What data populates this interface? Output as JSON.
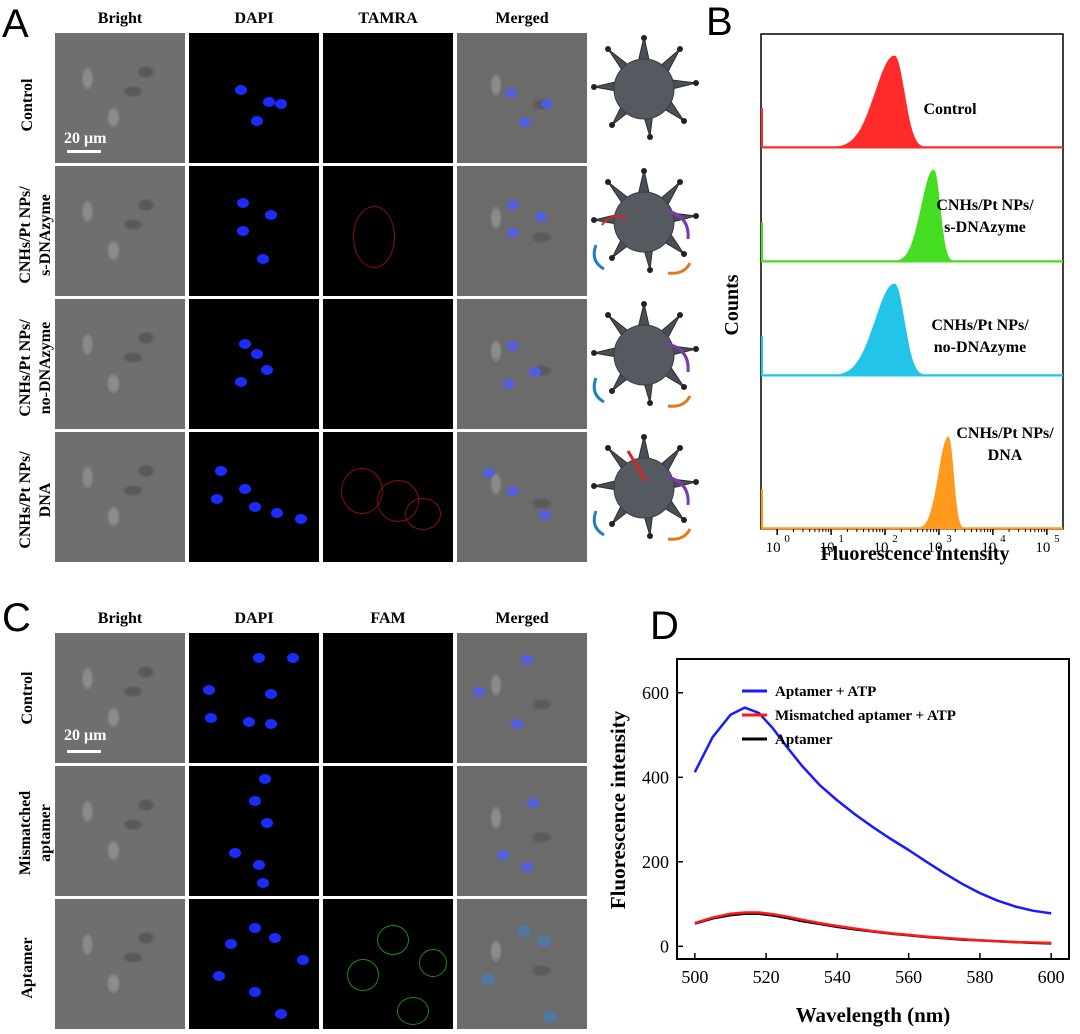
{
  "panelA": {
    "letter": "A",
    "columns": [
      "Bright",
      "DAPI",
      "TAMRA",
      "Merged"
    ],
    "rows": [
      "Control",
      "CNHs/Pt NPs/\ns-DNAzyme",
      "CNHs/Pt NPs/\nno-DNAzyme",
      "CNHs/Pt NPs/\nDNA"
    ],
    "scalebar": "20 μm"
  },
  "panelB": {
    "letter": "B",
    "ylabel": "Counts",
    "xlabel": "Fluorescence intensity",
    "ticks": [
      {
        "base": "10",
        "exp": "0"
      },
      {
        "base": "10",
        "exp": "1"
      },
      {
        "base": "10",
        "exp": "2"
      },
      {
        "base": "10",
        "exp": "3"
      },
      {
        "base": "10",
        "exp": "4"
      },
      {
        "base": "10",
        "exp": "5"
      }
    ],
    "histograms": [
      {
        "label": "Control",
        "color": "#ff2a2a",
        "peak": 150
      },
      {
        "label": "CNHs/Pt NPs/\ns-DNAzyme",
        "color": "#44dd22",
        "peak": 800
      },
      {
        "label": "CNHs/Pt NPs/\nno-DNAzyme",
        "color": "#22c4e8",
        "peak": 150
      },
      {
        "label": "CNHs/Pt NPs/\nDNA",
        "color": "#ff9a1f",
        "peak": 1500
      }
    ]
  },
  "panelC": {
    "letter": "C",
    "columns": [
      "Bright",
      "DAPI",
      "FAM",
      "Merged"
    ],
    "rows": [
      "Control",
      "Mismatched\naptamer",
      "Aptamer"
    ],
    "scalebar": "20 μm"
  },
  "chart_data": {
    "type": "line",
    "panel_letter": "D",
    "xlabel": "Wavelength (nm)",
    "ylabel": "Fluorescence intensity",
    "xlim": [
      495,
      605
    ],
    "ylim": [
      -30,
      680
    ],
    "xticks": [
      500,
      520,
      540,
      560,
      580,
      600
    ],
    "yticks": [
      0,
      200,
      400,
      600
    ],
    "legend_position": "top-right",
    "x": [
      500,
      505,
      510,
      514,
      518,
      522,
      526,
      530,
      535,
      540,
      545,
      550,
      555,
      560,
      565,
      570,
      575,
      580,
      585,
      590,
      595,
      600
    ],
    "series": [
      {
        "name": "Aptamer + ATP",
        "color": "#1a1aff",
        "values": [
          412,
          495,
          548,
          565,
          552,
          515,
          470,
          428,
          382,
          345,
          312,
          282,
          254,
          228,
          200,
          173,
          148,
          126,
          108,
          94,
          84,
          78
        ]
      },
      {
        "name": "Mismatched aptamer + ATP",
        "color": "#ff1a1a",
        "values": [
          55,
          68,
          77,
          80,
          80,
          76,
          70,
          63,
          55,
          48,
          42,
          36,
          31,
          27,
          23,
          20,
          17,
          14,
          12,
          10,
          9,
          8
        ]
      },
      {
        "name": "Aptamer",
        "color": "#000000",
        "values": [
          54,
          66,
          74,
          77,
          77,
          73,
          67,
          60,
          53,
          46,
          40,
          35,
          30,
          26,
          22,
          19,
          16,
          14,
          12,
          10,
          8,
          7
        ]
      }
    ]
  }
}
